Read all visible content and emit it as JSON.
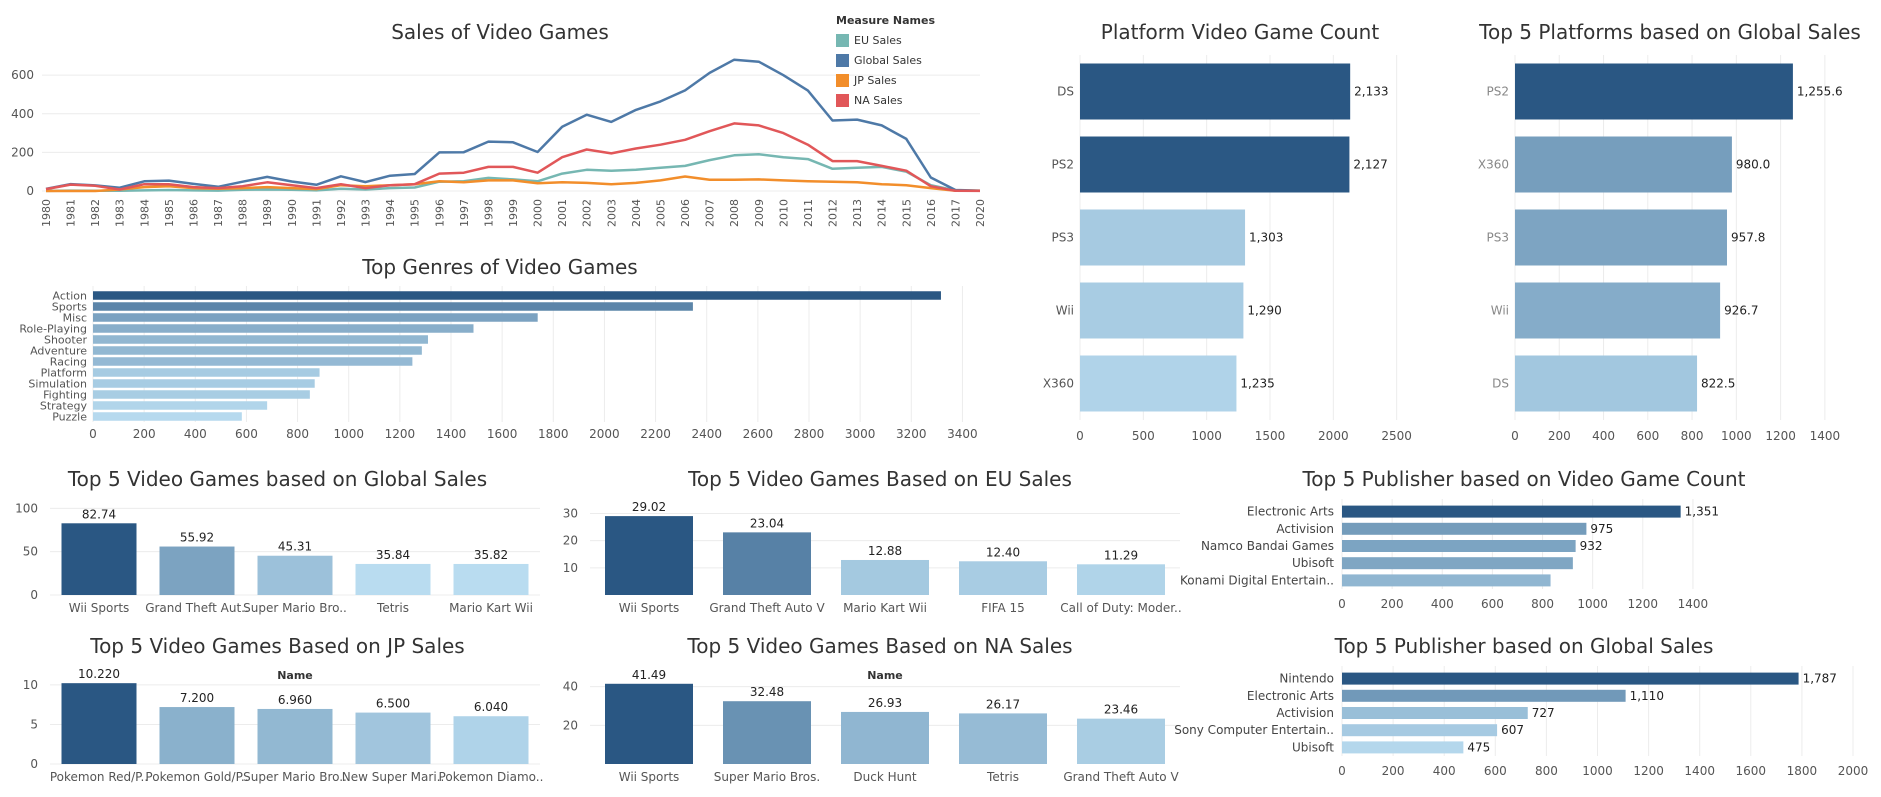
{
  "chart_data": [
    {
      "id": "line",
      "type": "line",
      "title": "Sales of Video Games",
      "legend_title": "Measure Names",
      "legend_position": "top-right",
      "x": [
        1980,
        1981,
        1982,
        1983,
        1984,
        1985,
        1986,
        1987,
        1988,
        1989,
        1990,
        1991,
        1992,
        1993,
        1994,
        1995,
        1996,
        1997,
        1998,
        1999,
        2000,
        2001,
        2002,
        2003,
        2004,
        2005,
        2006,
        2007,
        2008,
        2009,
        2010,
        2011,
        2012,
        2013,
        2014,
        2015,
        2016,
        2017,
        2020
      ],
      "ylim": [
        0,
        720
      ],
      "yticks": [
        0,
        200,
        400,
        600
      ],
      "series": [
        {
          "name": "EU Sales",
          "color": "#76b7b2",
          "values": [
            0.5,
            2,
            1.5,
            1,
            3,
            5,
            3,
            2,
            6,
            8,
            6,
            3,
            12,
            8,
            15,
            18,
            48,
            50,
            68,
            60,
            50,
            90,
            110,
            105,
            110,
            120,
            130,
            160,
            185,
            190,
            175,
            165,
            115,
            120,
            125,
            100,
            30,
            3,
            1
          ]
        },
        {
          "name": "Global Sales",
          "color": "#4e79a7",
          "values": [
            11,
            36,
            29,
            17,
            50,
            54,
            37,
            22,
            48,
            73,
            49,
            32,
            76,
            46,
            79,
            88,
            200,
            201,
            256,
            252,
            202,
            333,
            395,
            358,
            420,
            464,
            521,
            612,
            680,
            670,
            600,
            520,
            365,
            370,
            340,
            270,
            70,
            5,
            2
          ]
        },
        {
          "name": "JP Sales",
          "color": "#f28e2b",
          "values": [
            0,
            0,
            0,
            8,
            20,
            25,
            15,
            12,
            15,
            20,
            15,
            10,
            30,
            25,
            30,
            35,
            50,
            45,
            55,
            55,
            40,
            45,
            42,
            35,
            42,
            55,
            75,
            58,
            58,
            60,
            55,
            50,
            48,
            45,
            35,
            30,
            15,
            1,
            1
          ]
        },
        {
          "name": "NA Sales",
          "color": "#e15759",
          "values": [
            10,
            33,
            27,
            8,
            35,
            35,
            20,
            15,
            25,
            45,
            30,
            15,
            35,
            15,
            30,
            35,
            90,
            95,
            125,
            125,
            95,
            175,
            215,
            195,
            220,
            240,
            265,
            310,
            350,
            340,
            300,
            240,
            155,
            155,
            130,
            105,
            25,
            1,
            0.5
          ]
        }
      ]
    },
    {
      "id": "genres",
      "type": "bar",
      "title": "Top Genres of Video Games",
      "categories": [
        "Action",
        "Sports",
        "Misc",
        "Role-Playing",
        "Shooter",
        "Adventure",
        "Racing",
        "Platform",
        "Simulation",
        "Fighting",
        "Strategy",
        "Puzzle"
      ],
      "values": [
        3316,
        2346,
        1739,
        1488,
        1310,
        1286,
        1249,
        886,
        867,
        848,
        681,
        582
      ],
      "xlim": [
        0,
        3500
      ],
      "xticks": [
        0,
        200,
        400,
        600,
        800,
        1000,
        1200,
        1400,
        1600,
        1800,
        2000,
        2200,
        2400,
        2600,
        2800,
        3000,
        3200,
        3400
      ]
    },
    {
      "id": "platcount",
      "type": "bar",
      "title": "Platform Video Game Count",
      "categories": [
        "DS",
        "PS2",
        "PS3",
        "Wii",
        "X360"
      ],
      "values": [
        2133,
        2127,
        1303,
        1290,
        1235
      ],
      "labels": [
        "2,133",
        "2,127",
        "1,303",
        "1,290",
        "1,235"
      ],
      "xlim": [
        0,
        2700
      ],
      "xticks": [
        0,
        500,
        1000,
        1500,
        2000,
        2500
      ]
    },
    {
      "id": "platglobal",
      "type": "bar",
      "title": "Top 5 Platforms based on Global Sales",
      "categories": [
        "PS2",
        "X360",
        "PS3",
        "Wii",
        "DS"
      ],
      "values": [
        1255.6,
        980.0,
        957.8,
        926.7,
        822.5
      ],
      "labels": [
        "1,255.6",
        "980.0",
        "957.8",
        "926.7",
        "822.5"
      ],
      "xlim": [
        0,
        1500
      ],
      "xticks": [
        0,
        200,
        400,
        600,
        800,
        1000,
        1200,
        1400
      ]
    },
    {
      "id": "gamesglobal",
      "type": "bar",
      "title": "Top 5 Video Games based on Global Sales",
      "categories": [
        "Wii Sports",
        "Grand Theft Aut..",
        "Super Mario Bro..",
        "Tetris",
        "Mario Kart Wii"
      ],
      "values": [
        82.74,
        55.92,
        45.31,
        35.84,
        35.82
      ],
      "labels": [
        "82.74",
        "55.92",
        "45.31",
        "35.84",
        "35.82"
      ],
      "ylim": [
        0,
        90
      ],
      "yticks": [
        0,
        50,
        100
      ]
    },
    {
      "id": "gameseu",
      "type": "bar",
      "title": "Top 5 Video Games Based on EU Sales",
      "categories": [
        "Wii Sports",
        "Grand Theft Auto V",
        "Mario Kart Wii",
        "FIFA 15",
        "Call of Duty: Moder.."
      ],
      "values": [
        29.02,
        23.04,
        12.88,
        12.4,
        11.29
      ],
      "labels": [
        "29.02",
        "23.04",
        "12.88",
        "12.40",
        "11.29"
      ],
      "ylim": [
        0,
        32
      ],
      "yticks": [
        10,
        20,
        30
      ]
    },
    {
      "id": "pubcount",
      "type": "bar",
      "title": "Top 5 Publisher based on Video Game Count",
      "categories": [
        "Electronic Arts",
        "Activision",
        "Namco Bandai Games",
        "Ubisoft",
        "Konami Digital Entertain.."
      ],
      "values": [
        1351,
        975,
        932,
        921,
        832
      ],
      "labels": [
        "1,351",
        "975",
        "932",
        "",
        ""
      ],
      "xlim": [
        0,
        1500
      ],
      "xticks": [
        0,
        200,
        400,
        600,
        800,
        1000,
        1200,
        1400
      ]
    },
    {
      "id": "gamesjp",
      "type": "bar",
      "title": "Top 5 Video Games Based on JP Sales",
      "axis_header": "Name",
      "categories": [
        "Pokemon Red/P..",
        "Pokemon Gold/P..",
        "Super Mario Bro..",
        "New Super Mari..",
        "Pokemon Diamo.."
      ],
      "values": [
        10.22,
        7.2,
        6.96,
        6.5,
        6.04
      ],
      "labels": [
        "10.220",
        "7.200",
        "6.960",
        "6.500",
        "6.040"
      ],
      "ylim": [
        0,
        11
      ],
      "yticks": [
        0,
        5,
        10
      ]
    },
    {
      "id": "gamesna",
      "type": "bar",
      "title": "Top 5 Video Games Based on NA Sales",
      "axis_header": "Name",
      "categories": [
        "Wii Sports",
        "Super Mario Bros.",
        "Duck Hunt",
        "Tetris",
        "Grand Theft Auto V"
      ],
      "values": [
        41.49,
        32.48,
        26.93,
        26.17,
        23.46
      ],
      "labels": [
        "41.49",
        "32.48",
        "26.93",
        "26.17",
        "23.46"
      ],
      "ylim": [
        0,
        45
      ],
      "yticks": [
        20,
        40
      ]
    },
    {
      "id": "pubglobal",
      "type": "bar",
      "title": "Top 5 Publisher based on Global Sales",
      "categories": [
        "Nintendo",
        "Electronic Arts",
        "Activision",
        "Sony Computer Entertain..",
        "Ubisoft"
      ],
      "values": [
        1787,
        1110,
        727,
        607,
        475
      ],
      "labels": [
        "1,787",
        "1,110",
        "727",
        "607",
        "475"
      ],
      "xlim": [
        0,
        2000
      ],
      "xticks": [
        0,
        200,
        400,
        600,
        800,
        1000,
        1200,
        1400,
        1600,
        1800,
        2000
      ]
    }
  ]
}
